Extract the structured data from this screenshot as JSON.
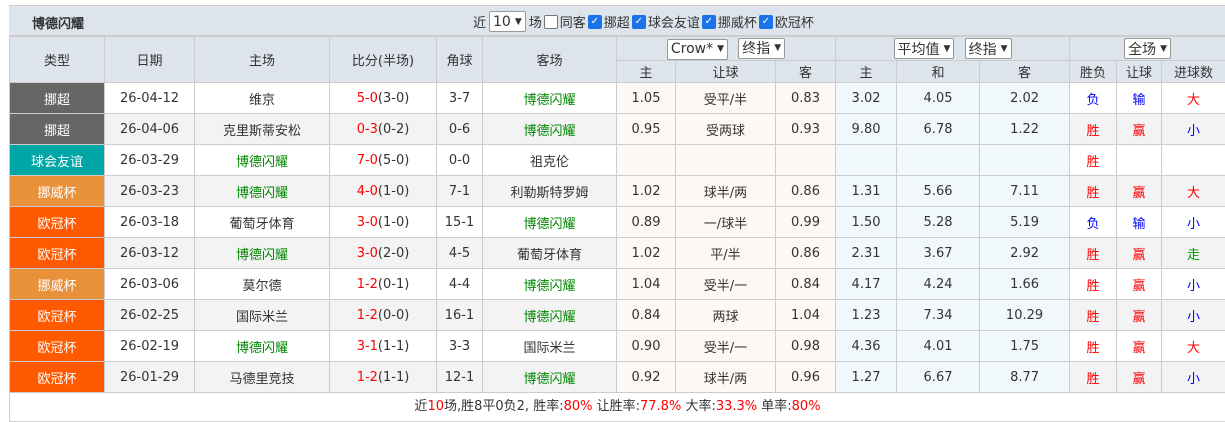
{
  "title": "博德闪耀",
  "filters": {
    "recent_prefix": "近",
    "recent_count": "10",
    "recent_suffix": "场",
    "same_home_label": "同客",
    "same_home_checked": false,
    "leagues": [
      {
        "label": "挪超",
        "checked": true
      },
      {
        "label": "球会友谊",
        "checked": true
      },
      {
        "label": "挪威杯",
        "checked": true
      },
      {
        "label": "欧冠杯",
        "checked": true
      }
    ]
  },
  "headers": {
    "type": "类型",
    "date": "日期",
    "home": "主场",
    "score": "比分(半场)",
    "corner": "角球",
    "away": "客场",
    "odds_company": "Crow*",
    "odds_type": "终指",
    "avg_company": "平均值",
    "avg_type": "终指",
    "scope": "全场",
    "sub": [
      "主",
      "让球",
      "客",
      "主",
      "和",
      "客",
      "胜负",
      "让球",
      "进球数"
    ]
  },
  "league_colors": {
    "挪超": "#666666",
    "球会友谊": "#00a6a6",
    "挪威杯": "#e8913a",
    "欧冠杯": "#ff5a00"
  },
  "rows": [
    {
      "type": "挪超",
      "date": "26-04-12",
      "home": "维京",
      "score": "5-0",
      "half": "(3-0)",
      "corner": "3-7",
      "away": "博德闪耀",
      "o1": "1.05",
      "hc": "受平/半",
      "o2": "0.83",
      "a1": "3.02",
      "a2": "4.05",
      "a3": "2.02",
      "wl": "负",
      "ah": "输",
      "ou": "大",
      "homeTeam": false
    },
    {
      "type": "挪超",
      "date": "26-04-06",
      "home": "克里斯蒂安松",
      "score": "0-3",
      "half": "(0-2)",
      "corner": "0-6",
      "away": "博德闪耀",
      "o1": "0.95",
      "hc": "受两球",
      "o2": "0.93",
      "a1": "9.80",
      "a2": "6.78",
      "a3": "1.22",
      "wl": "胜",
      "ah": "赢",
      "ou": "小",
      "homeTeam": false
    },
    {
      "type": "球会友谊",
      "date": "26-03-29",
      "home": "博德闪耀",
      "score": "7-0",
      "half": "(5-0)",
      "corner": "0-0",
      "away": "祖克伦",
      "o1": "",
      "hc": "",
      "o2": "",
      "a1": "",
      "a2": "",
      "a3": "",
      "wl": "胜",
      "ah": "",
      "ou": "",
      "homeTeam": true
    },
    {
      "type": "挪威杯",
      "date": "26-03-23",
      "home": "博德闪耀",
      "score": "4-0",
      "half": "(1-0)",
      "corner": "7-1",
      "away": "利勒斯特罗姆",
      "o1": "1.02",
      "hc": "球半/两",
      "o2": "0.86",
      "a1": "1.31",
      "a2": "5.66",
      "a3": "7.11",
      "wl": "胜",
      "ah": "赢",
      "ou": "大",
      "homeTeam": true
    },
    {
      "type": "欧冠杯",
      "date": "26-03-18",
      "home": "葡萄牙体育",
      "score": "3-0",
      "half": "(1-0)",
      "corner": "15-1",
      "away": "博德闪耀",
      "o1": "0.89",
      "hc": "一/球半",
      "o2": "0.99",
      "a1": "1.50",
      "a2": "5.28",
      "a3": "5.19",
      "wl": "负",
      "ah": "输",
      "ou": "小",
      "homeTeam": false
    },
    {
      "type": "欧冠杯",
      "date": "26-03-12",
      "home": "博德闪耀",
      "score": "3-0",
      "half": "(2-0)",
      "corner": "4-5",
      "away": "葡萄牙体育",
      "o1": "1.02",
      "hc": "平/半",
      "o2": "0.86",
      "a1": "2.31",
      "a2": "3.67",
      "a3": "2.92",
      "wl": "胜",
      "ah": "赢",
      "ou": "走",
      "homeTeam": true
    },
    {
      "type": "挪威杯",
      "date": "26-03-06",
      "home": "莫尔德",
      "score": "1-2",
      "half": "(0-1)",
      "corner": "4-4",
      "away": "博德闪耀",
      "o1": "1.04",
      "hc": "受半/一",
      "o2": "0.84",
      "a1": "4.17",
      "a2": "4.24",
      "a3": "1.66",
      "wl": "胜",
      "ah": "赢",
      "ou": "小",
      "homeTeam": false
    },
    {
      "type": "欧冠杯",
      "date": "26-02-25",
      "home": "国际米兰",
      "score": "1-2",
      "half": "(0-0)",
      "corner": "16-1",
      "away": "博德闪耀",
      "o1": "0.84",
      "hc": "两球",
      "o2": "1.04",
      "a1": "1.23",
      "a2": "7.34",
      "a3": "10.29",
      "wl": "胜",
      "ah": "赢",
      "ou": "小",
      "homeTeam": false
    },
    {
      "type": "欧冠杯",
      "date": "26-02-19",
      "home": "博德闪耀",
      "score": "3-1",
      "half": "(1-1)",
      "corner": "3-3",
      "away": "国际米兰",
      "o1": "0.90",
      "hc": "受半/一",
      "o2": "0.98",
      "a1": "4.36",
      "a2": "4.01",
      "a3": "1.75",
      "wl": "胜",
      "ah": "赢",
      "ou": "大",
      "homeTeam": true
    },
    {
      "type": "欧冠杯",
      "date": "26-01-29",
      "home": "马德里竞技",
      "score": "1-2",
      "half": "(1-1)",
      "corner": "12-1",
      "away": "博德闪耀",
      "o1": "0.92",
      "hc": "球半/两",
      "o2": "0.96",
      "a1": "1.27",
      "a2": "6.67",
      "a3": "8.77",
      "wl": "胜",
      "ah": "赢",
      "ou": "小",
      "homeTeam": false
    }
  ],
  "summary": {
    "p1": "近",
    "n": "10",
    "p2": "场,胜8平0负2, 胜率:",
    "win": "80%",
    "p3": " 让胜率:",
    "ah": "77.8%",
    "p4": " 大率:",
    "big": "33.3%",
    "p5": " 单率:",
    "odd": "80%"
  }
}
